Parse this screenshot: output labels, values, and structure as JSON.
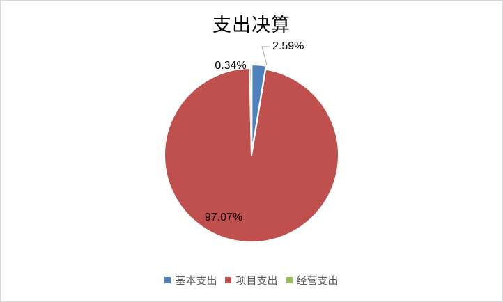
{
  "chart_data": {
    "type": "pie",
    "title": "支出决算",
    "categories": [
      "基本支出",
      "项目支出",
      "经营支出"
    ],
    "values": [
      2.59,
      97.07,
      0.34
    ],
    "labels": [
      "2.59%",
      "97.07%",
      "0.34%"
    ],
    "colors": [
      "#4F81BD",
      "#C0504D",
      "#9BBB59"
    ],
    "legend_position": "bottom"
  }
}
